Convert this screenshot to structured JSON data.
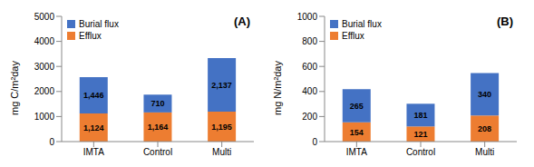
{
  "chart_data": [
    {
      "type": "bar",
      "title": "(A)",
      "ylabel": "mg C/m²day",
      "categories": [
        "IMTA",
        "Control",
        "Multi"
      ],
      "series": [
        {
          "name": "Efflux",
          "color": "#ed7d31",
          "values": [
            1124,
            1164,
            1195
          ],
          "value_labels": [
            "1,124",
            "1,164",
            "1,195"
          ]
        },
        {
          "name": "Burial flux",
          "color": "#4472c4",
          "values": [
            1446,
            710,
            2137
          ],
          "value_labels": [
            "1,446",
            "710",
            "2,137"
          ]
        }
      ],
      "ylim": [
        0,
        5000
      ],
      "yticks": [
        0,
        1000,
        2000,
        3000,
        4000,
        5000
      ],
      "stacked": true,
      "data_labels": true,
      "grid": false,
      "legend": "upper left"
    },
    {
      "type": "bar",
      "title": "(B)",
      "ylabel": "mg N/m²day",
      "categories": [
        "IMTA",
        "Control",
        "Multi"
      ],
      "series": [
        {
          "name": "Efflux",
          "color": "#ed7d31",
          "values": [
            154,
            121,
            208
          ]
        },
        {
          "name": "Burial flux",
          "color": "#4472c4",
          "values": [
            265,
            181,
            340
          ]
        }
      ],
      "ylim": [
        0,
        1000
      ],
      "yticks": [
        0,
        200,
        400,
        600,
        800,
        1000
      ],
      "stacked": true,
      "data_labels": true,
      "grid": false,
      "legend": "upper left"
    }
  ]
}
